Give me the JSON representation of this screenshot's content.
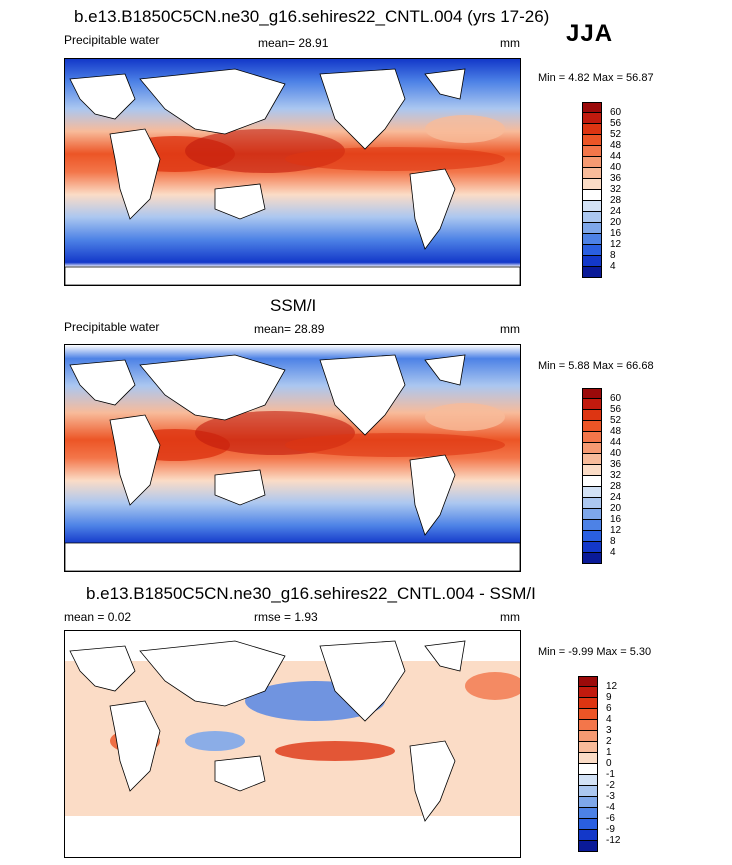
{
  "season": "JJA",
  "panels": [
    {
      "title": "b.e13.B1850C5CN.ne30_g16.sehires22_CNTL.004 (yrs 17-26)",
      "left_label": "Precipitable water",
      "center_label": "mean=  28.91",
      "right_label": "mm",
      "minmax": "Min =   4.82 Max =  56.87",
      "colorbar_labels": [
        "60",
        "56",
        "52",
        "48",
        "44",
        "40",
        "36",
        "32",
        "28",
        "24",
        "20",
        "16",
        "12",
        "8",
        "4"
      ],
      "colorbar_colors": [
        "#9b0a0a",
        "#c11a0e",
        "#dd3512",
        "#ec5526",
        "#f3764a",
        "#f69a72",
        "#f8bb9a",
        "#fbdcc6",
        "#ffffff",
        "#d3e2f6",
        "#abc7f0",
        "#7ea7ea",
        "#4d82e6",
        "#2a5fe0",
        "#1338c9",
        "#0a1a98"
      ]
    },
    {
      "title": "SSM/I",
      "left_label": "Precipitable water",
      "center_label": "mean=  28.89",
      "right_label": "mm",
      "minmax": "Min =   5.88 Max =  66.68",
      "colorbar_labels": [
        "60",
        "56",
        "52",
        "48",
        "44",
        "40",
        "36",
        "32",
        "28",
        "24",
        "20",
        "16",
        "12",
        "8",
        "4"
      ],
      "colorbar_colors": [
        "#9b0a0a",
        "#c11a0e",
        "#dd3512",
        "#ec5526",
        "#f3764a",
        "#f69a72",
        "#f8bb9a",
        "#fbdcc6",
        "#ffffff",
        "#d3e2f6",
        "#abc7f0",
        "#7ea7ea",
        "#4d82e6",
        "#2a5fe0",
        "#1338c9",
        "#0a1a98"
      ]
    },
    {
      "title": "b.e13.B1850C5CN.ne30_g16.sehires22_CNTL.004 - SSM/I",
      "left_label": "mean =   0.02",
      "center_label": "rmse =   1.93",
      "right_label": "mm",
      "minmax": "Min =  -9.99 Max =   5.30",
      "colorbar_labels": [
        "12",
        "9",
        "6",
        "4",
        "3",
        "2",
        "1",
        "0",
        "-1",
        "-2",
        "-3",
        "-4",
        "-6",
        "-9",
        "-12"
      ],
      "colorbar_colors": [
        "#9b0a0a",
        "#c11a0e",
        "#dd3512",
        "#ec5526",
        "#f3764a",
        "#f69a72",
        "#f8bb9a",
        "#fbdcc6",
        "#ffffff",
        "#d3e2f6",
        "#abc7f0",
        "#7ea7ea",
        "#4d82e6",
        "#2a5fe0",
        "#1338c9",
        "#0a1a98"
      ]
    }
  ]
}
